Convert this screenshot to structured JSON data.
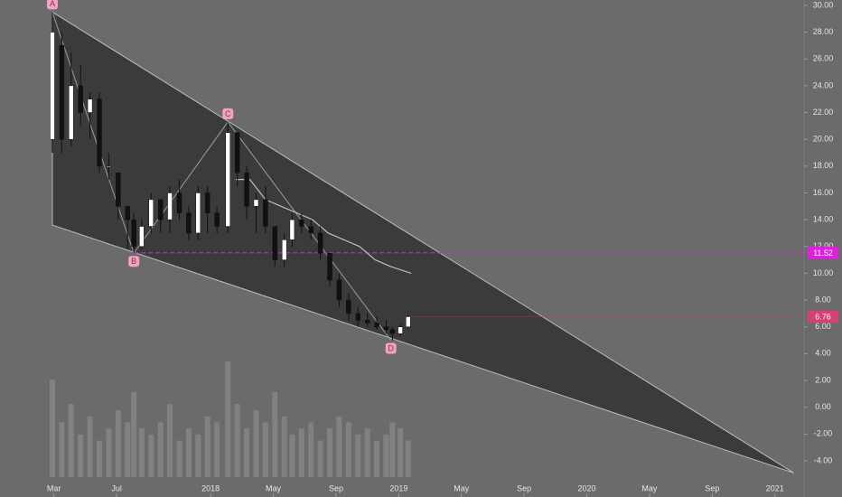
{
  "chart_data": {
    "type": "candlestick",
    "x": [
      1.9,
      2.5,
      3.1,
      3.7,
      4.3,
      4.9,
      5.5,
      6.1,
      6.7,
      7.1,
      7.6,
      8.2,
      8.8,
      9.4,
      10.0,
      10.6,
      11.2,
      11.8,
      12.4,
      13.1,
      13.7,
      14.3,
      14.9,
      15.5,
      16.1,
      16.7,
      17.2,
      17.8,
      18.4,
      19.0,
      19.6,
      20.2,
      20.8,
      21.4,
      22.0,
      22.6,
      23.2,
      23.6,
      24.1,
      24.6
    ],
    "open": [
      20,
      27,
      20,
      24,
      22,
      23,
      18,
      17.5,
      15,
      14,
      12,
      13.5,
      15.5,
      14,
      16,
      14.5,
      13,
      16,
      14.5,
      13.5,
      20.5,
      17.5,
      15,
      15.5,
      13.5,
      11,
      12.5,
      14,
      13.5,
      13,
      11.5,
      9.5,
      8,
      7,
      6.5,
      6.3,
      6,
      5.8,
      5.5,
      6
    ],
    "high": [
      29.5,
      28,
      26.5,
      25.5,
      23.5,
      23.5,
      19,
      17.5,
      15,
      14.5,
      14,
      16,
      15.5,
      16.5,
      17,
      15,
      16.5,
      16.5,
      15,
      21.3,
      20.5,
      18,
      16,
      16.5,
      13.5,
      13,
      14.5,
      14.5,
      14,
      13.5,
      11.5,
      10,
      8.5,
      7.5,
      7,
      6.8,
      6.5,
      6,
      6.2,
      6.9
    ],
    "low": [
      19,
      19,
      19.5,
      21,
      20,
      17.5,
      17,
      14,
      11.8,
      11.5,
      11.8,
      13,
      13,
      13,
      14,
      12.5,
      12.5,
      13,
      13,
      13,
      16.5,
      14,
      13,
      13,
      10.5,
      10.5,
      12,
      13,
      12.5,
      11,
      9,
      7.5,
      6.5,
      6,
      6,
      5.8,
      5.5,
      5,
      5.3,
      5.9
    ],
    "close": [
      28,
      20,
      24,
      22,
      23,
      18,
      18,
      15,
      14,
      12,
      13.5,
      15.5,
      14,
      16,
      14.5,
      13,
      16,
      14.5,
      13.5,
      20.5,
      17.5,
      15,
      15.5,
      13.5,
      11,
      12.5,
      14,
      13.5,
      13,
      11.5,
      9.5,
      8,
      7,
      6.5,
      6.3,
      6,
      5.8,
      5.5,
      6,
      6.76
    ],
    "volume": [
      80,
      45,
      60,
      35,
      50,
      30,
      40,
      55,
      45,
      70,
      40,
      35,
      45,
      60,
      30,
      40,
      35,
      50,
      45,
      95,
      60,
      40,
      55,
      45,
      70,
      50,
      35,
      40,
      45,
      30,
      40,
      50,
      45,
      35,
      40,
      30,
      35,
      45,
      40,
      30
    ],
    "up_color": "#ffffff",
    "down_color": "#111111",
    "ma": {
      "x": [
        13.6,
        14.5,
        15.5,
        16.5,
        17.5,
        18.5,
        19.5,
        20.5,
        21.5,
        22.5,
        23.5,
        24.8
      ],
      "values": [
        17,
        17,
        15.5,
        15,
        14.5,
        14,
        13,
        12.5,
        12,
        11,
        10.5,
        10
      ],
      "color": "#bdbdbd"
    },
    "triangle": {
      "x": [
        1.9,
        49.2,
        1.9
      ],
      "y": [
        29.5,
        -4.9,
        13.6
      ],
      "color": "#333333"
    },
    "points": [
      {
        "label": "A",
        "x": 1.9,
        "y": 29.5
      },
      {
        "label": "B",
        "x": 7.1,
        "y": 11.5
      },
      {
        "label": "C",
        "x": 13.1,
        "y": 21.3
      },
      {
        "label": "D",
        "x": 23.5,
        "y": 5.0
      }
    ],
    "price_labels": [
      {
        "value": 11.52,
        "color": "#e020e0"
      },
      {
        "value": 6.76,
        "color": "#d84070"
      }
    ],
    "xlim": [
      -1.44,
      49.86
    ],
    "ylim": [
      -6.7,
      30.4
    ],
    "xticks": [
      {
        "value": 2,
        "label": "Mar"
      },
      {
        "value": 6,
        "label": "Jul"
      },
      {
        "value": 12,
        "label": "2018"
      },
      {
        "value": 16,
        "label": "May"
      },
      {
        "value": 20,
        "label": "Sep"
      },
      {
        "value": 24,
        "label": "2019"
      },
      {
        "value": 28,
        "label": "May"
      },
      {
        "value": 32,
        "label": "Sep"
      },
      {
        "value": 36,
        "label": "2020"
      },
      {
        "value": 40,
        "label": "May"
      },
      {
        "value": 44,
        "label": "Sep"
      },
      {
        "value": 48,
        "label": "2021"
      }
    ],
    "yticks": [
      {
        "value": 30,
        "label": "30.00"
      },
      {
        "value": 28,
        "label": "28.00"
      },
      {
        "value": 26,
        "label": "26.00"
      },
      {
        "value": 24,
        "label": "24.00"
      },
      {
        "value": 22,
        "label": "22.00"
      },
      {
        "value": 20,
        "label": "20.00"
      },
      {
        "value": 18,
        "label": "18.00"
      },
      {
        "value": 16,
        "label": "16.00"
      },
      {
        "value": 14,
        "label": "14.00"
      },
      {
        "value": 12,
        "label": "12.00"
      },
      {
        "value": 10,
        "label": "10.00"
      },
      {
        "value": 8,
        "label": "8.00"
      },
      {
        "value": 6,
        "label": "6.00"
      },
      {
        "value": 4,
        "label": "4.00"
      },
      {
        "value": 2,
        "label": "2.00"
      },
      {
        "value": 0,
        "label": "0.00"
      },
      {
        "value": -2,
        "label": "-2.00"
      },
      {
        "value": -4,
        "label": "-4.00"
      }
    ]
  }
}
